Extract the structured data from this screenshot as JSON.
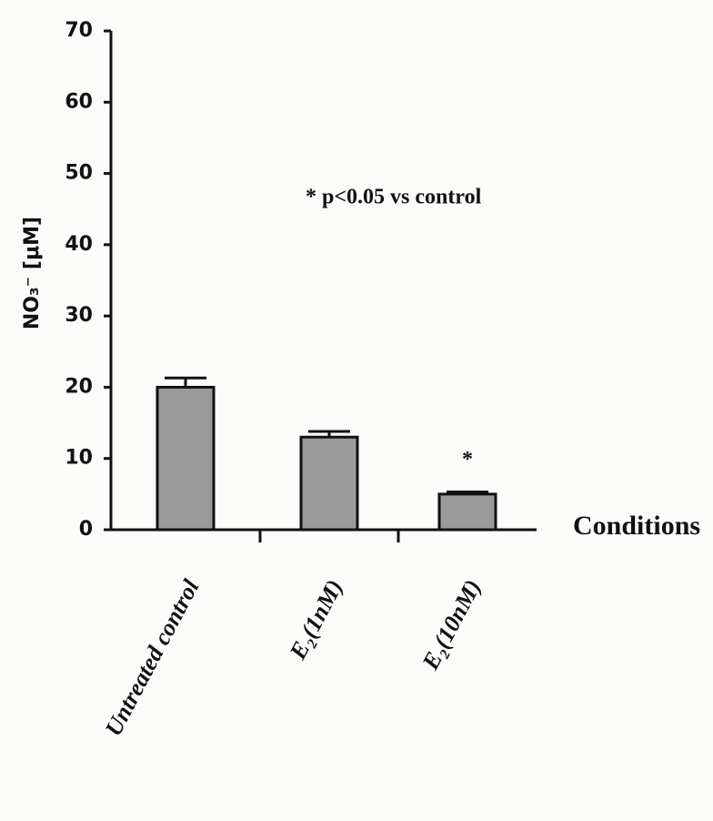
{
  "chart_data": {
    "type": "bar",
    "categories": [
      "Untreated control",
      "E₂(1nM)",
      "E₂(10nM)"
    ],
    "values": [
      20,
      13,
      5
    ],
    "errors": [
      1.3,
      0.8,
      0.3
    ],
    "color": "#9a9a9a",
    "ylim": [
      0,
      70
    ],
    "yticks": [
      0,
      10,
      20,
      30,
      40,
      50,
      60,
      70
    ],
    "ylabel": "NO₃⁻ [μM]",
    "xlabel": "Conditions",
    "annotation": "* p<0.05 vs control",
    "significance_marker": "*"
  }
}
